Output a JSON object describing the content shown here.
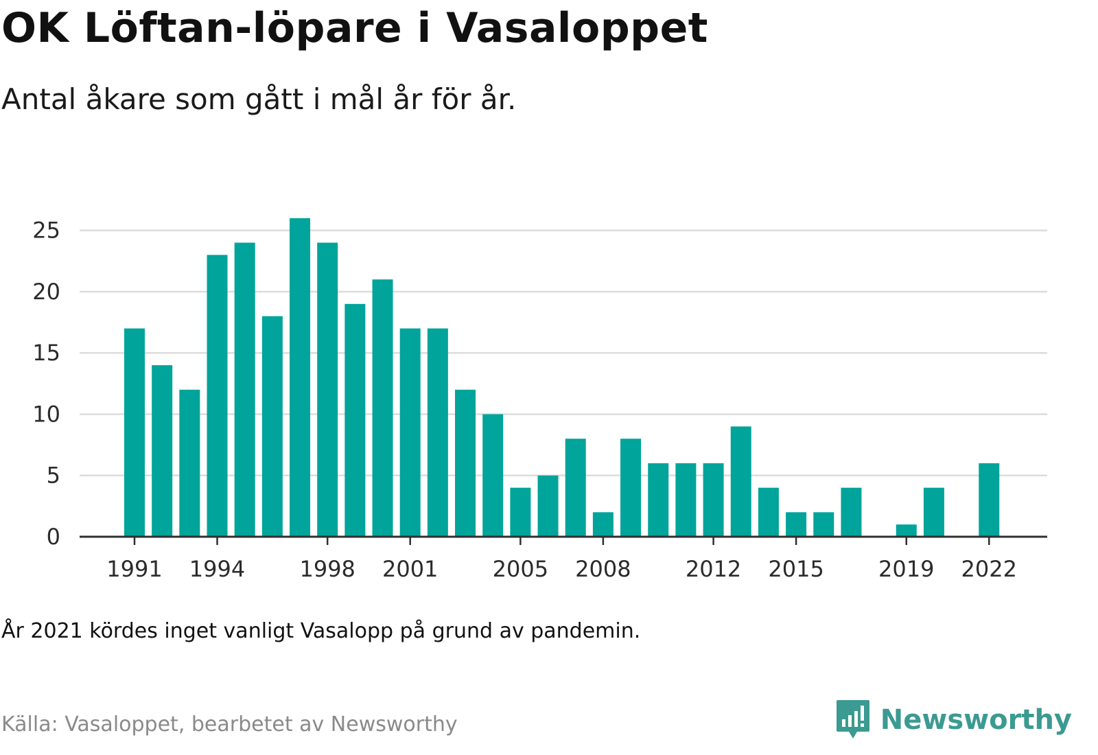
{
  "title": "OK Löftan-löpare i Vasaloppet",
  "subtitle": "Antal åkare som gått i mål år för år.",
  "note": "År 2021 kördes inget vanligt Vasalopp på grund av pandemin.",
  "source": "Källa: Vasaloppet, bearbetet av Newsworthy",
  "logo": {
    "text": "Newsworthy",
    "icon": "newsworthy-chart-bubble-icon",
    "color": "#3b9a91"
  },
  "chart_data": {
    "type": "bar",
    "title": "OK Löftan-löpare i Vasaloppet",
    "subtitle": "Antal åkare som gått i mål år för år.",
    "xlabel": "",
    "ylabel": "",
    "categories": [
      1991,
      1992,
      1993,
      1994,
      1995,
      1996,
      1997,
      1998,
      1999,
      2000,
      2001,
      2002,
      2003,
      2004,
      2005,
      2006,
      2007,
      2008,
      2009,
      2010,
      2011,
      2012,
      2013,
      2014,
      2015,
      2016,
      2017,
      2018,
      2019,
      2020,
      2021,
      2022
    ],
    "values": [
      17,
      14,
      12,
      23,
      24,
      18,
      26,
      24,
      19,
      21,
      17,
      17,
      12,
      10,
      4,
      5,
      8,
      2,
      8,
      6,
      6,
      6,
      9,
      4,
      2,
      2,
      4,
      0,
      1,
      4,
      0,
      6
    ],
    "x_tick_labels": [
      "1991",
      "1994",
      "1998",
      "2001",
      "2005",
      "2008",
      "2012",
      "2015",
      "2019",
      "2022"
    ],
    "y_ticks": [
      0,
      5,
      10,
      15,
      20,
      25
    ],
    "ylim": [
      0,
      27
    ],
    "grid": true,
    "bar_color": "#00a49a"
  }
}
